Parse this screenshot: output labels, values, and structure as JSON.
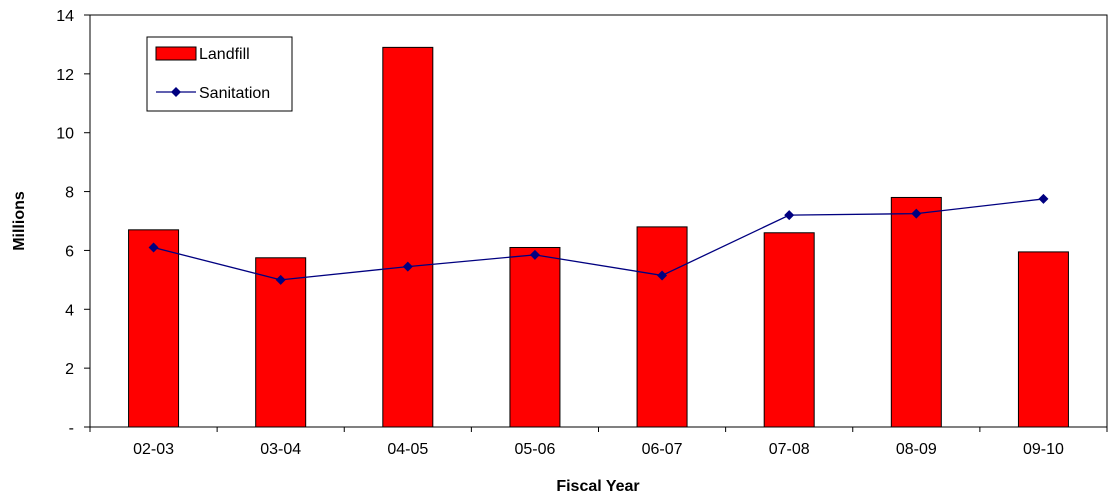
{
  "chart_data": {
    "type": "bar",
    "categories": [
      "02-03",
      "03-04",
      "04-05",
      "05-06",
      "06-07",
      "07-08",
      "08-09",
      "09-10"
    ],
    "series": [
      {
        "name": "Landfill",
        "type": "bar",
        "color": "#ff0000",
        "values": [
          6.7,
          5.75,
          12.9,
          6.1,
          6.8,
          6.6,
          7.8,
          5.95
        ]
      },
      {
        "name": "Sanitation",
        "type": "line",
        "color": "#000080",
        "marker": "diamond",
        "values": [
          6.1,
          5.0,
          5.45,
          5.85,
          5.15,
          7.2,
          7.25,
          7.75
        ]
      }
    ],
    "xlabel": "Fiscal Year",
    "ylabel": "Millions",
    "ylim": [
      0,
      14
    ],
    "yticks": [
      0,
      2,
      4,
      6,
      8,
      10,
      12,
      14
    ],
    "ytick_labels": [
      "-",
      "2",
      "4",
      "6",
      "8",
      "10",
      "12",
      "14"
    ],
    "grid": false,
    "legend_position": "top-left"
  }
}
